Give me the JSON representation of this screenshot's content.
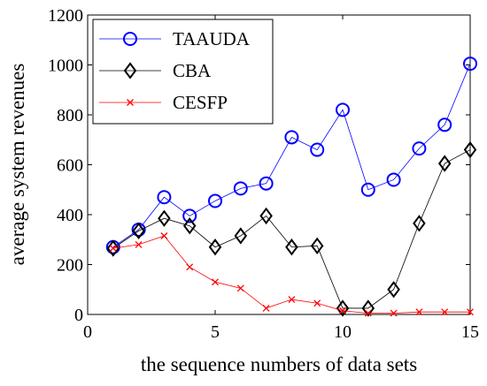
{
  "chart_data": {
    "type": "line",
    "xlabel": "the sequence numbers of data sets",
    "ylabel": "average system revenues",
    "xlim": [
      0,
      15
    ],
    "ylim": [
      0,
      1200
    ],
    "x_ticks": [
      0,
      5,
      10,
      15
    ],
    "y_ticks": [
      0,
      200,
      400,
      600,
      800,
      1000,
      1200
    ],
    "grid": false,
    "legend_position": "top-left",
    "x": [
      1,
      2,
      3,
      4,
      5,
      6,
      7,
      8,
      9,
      10,
      11,
      12,
      13,
      14,
      15
    ],
    "series": [
      {
        "name": "TAAUDA",
        "color": "#0000ff",
        "marker": "circle",
        "values": [
          270,
          340,
          470,
          395,
          455,
          505,
          525,
          710,
          660,
          820,
          500,
          540,
          665,
          760,
          1005
        ]
      },
      {
        "name": "CBA",
        "color": "#000000",
        "marker": "diamond",
        "values": [
          265,
          335,
          385,
          355,
          270,
          315,
          395,
          270,
          275,
          25,
          25,
          100,
          365,
          605,
          660
        ]
      },
      {
        "name": "CESFP",
        "color": "#ff0000",
        "marker": "x",
        "values": [
          265,
          280,
          315,
          190,
          130,
          105,
          25,
          60,
          45,
          15,
          5,
          5,
          10,
          10,
          10
        ]
      }
    ]
  }
}
